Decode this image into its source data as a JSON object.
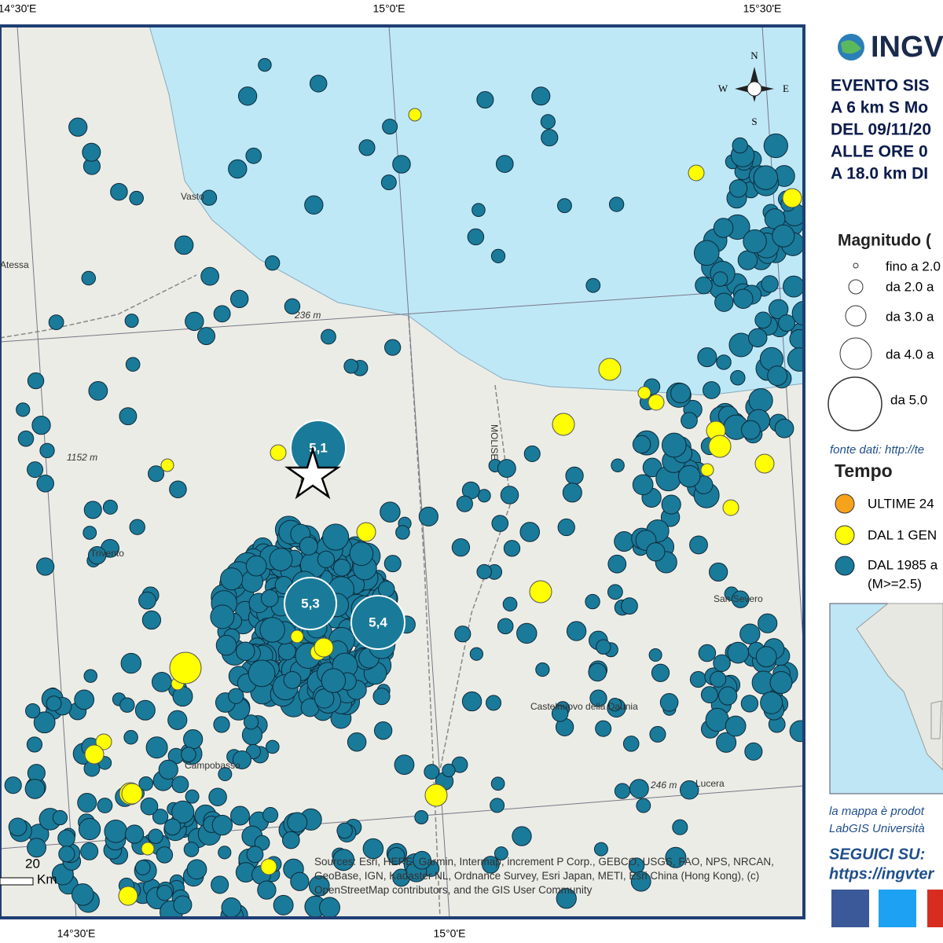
{
  "map": {
    "coord_labels_top": [
      "14°30'E",
      "15°0'E",
      "15°30'E"
    ],
    "coord_labels_bottom": [
      "14°30'E",
      "15°0'E"
    ],
    "compass": [
      "N",
      "S",
      "W",
      "E"
    ],
    "places": [
      "Vasto",
      "Atessa",
      "Trivento",
      "Campobasso",
      "San Severo",
      "Castelnuovo della Daunia",
      "Lucera",
      "MOLISE"
    ],
    "elevations": [
      "236 m",
      "1152 m",
      "246 m"
    ],
    "magnitude_labels": [
      "5,1",
      "5,3",
      "5,4"
    ],
    "scale": {
      "value": "20",
      "unit": "Km"
    },
    "attribution": "Sources: Esri, HERE, Garmin, Intermap, increment P Corp., GEBCO, USGS, FAO, NPS, NRCAN, GeoBase, IGN, Kadaster NL, Ordnance Survey, Esri Japan, METI, Esri China (Hong Kong), (c) OpenStreetMap contributors, and the GIS User Community"
  },
  "sidebar": {
    "logo": "INGV",
    "event": [
      "EVENTO SIS",
      "A 6 km S Mo",
      "DEL 09/11/20",
      "ALLE ORE 0",
      "A 18.0 km DI"
    ],
    "magnitude_title": "Magnitudo (",
    "magnitude_legend": [
      "fino a 2.0",
      "da 2.0 a",
      "da 3.0 a",
      "da 4.0 a",
      "da 5.0"
    ],
    "source": "fonte dati: http://te",
    "time_title": "Tempo",
    "time_legend": [
      "ULTIME 24",
      "DAL 1 GEN",
      "DAL 1985 a"
    ],
    "time_note": "(M>=2.5)",
    "credit": [
      "la mappa è prodot",
      "LabGIS Università"
    ],
    "follow": "SEGUICI SU:",
    "url": "https://ingvter"
  }
}
